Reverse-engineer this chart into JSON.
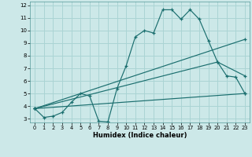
{
  "xlabel": "Humidex (Indice chaleur)",
  "bg_color": "#cce8e8",
  "grid_color": "#aad4d4",
  "line_color": "#1a6e6e",
  "xlim": [
    -0.5,
    23.5
  ],
  "ylim": [
    2.7,
    12.3
  ],
  "yticks": [
    3,
    4,
    5,
    6,
    7,
    8,
    9,
    10,
    11,
    12
  ],
  "xticks": [
    0,
    1,
    2,
    3,
    4,
    5,
    6,
    7,
    8,
    9,
    10,
    11,
    12,
    13,
    14,
    15,
    16,
    17,
    18,
    19,
    20,
    21,
    22,
    23
  ],
  "line1_x": [
    0,
    1,
    2,
    3,
    4,
    5,
    6,
    7,
    8,
    9,
    10,
    11,
    12,
    13,
    14,
    15,
    16,
    17,
    18,
    19,
    20,
    21,
    22,
    23
  ],
  "line1_y": [
    3.8,
    3.1,
    3.2,
    3.5,
    4.3,
    5.0,
    4.8,
    2.8,
    2.75,
    5.4,
    7.2,
    9.5,
    10.0,
    9.8,
    11.65,
    11.65,
    10.9,
    11.65,
    10.9,
    9.2,
    7.5,
    6.4,
    6.3,
    5.0
  ],
  "line2_x": [
    0,
    23
  ],
  "line2_y": [
    3.8,
    9.3
  ],
  "line3_x": [
    0,
    20,
    23
  ],
  "line3_y": [
    3.8,
    7.5,
    6.4
  ],
  "line4_x": [
    0,
    23
  ],
  "line4_y": [
    3.8,
    5.0
  ]
}
